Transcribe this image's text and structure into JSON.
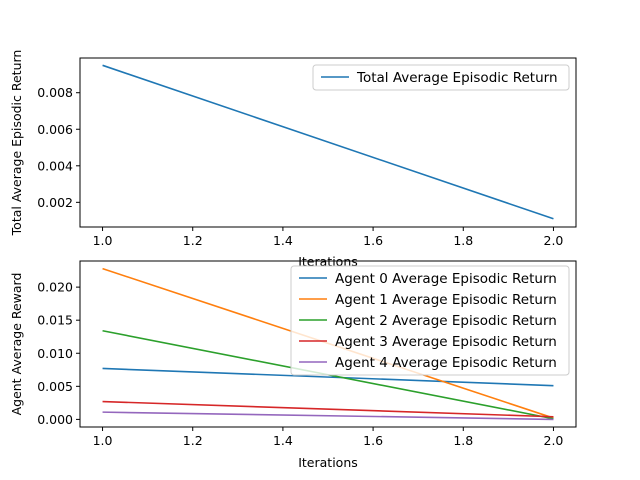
{
  "chart_data": [
    {
      "type": "line",
      "xlabel": "Iterations",
      "ylabel": "Total Average Episodic Return",
      "xlim": [
        0.95,
        2.05
      ],
      "ylim": [
        0.00065,
        0.0099
      ],
      "xticks": [
        1.0,
        1.2,
        1.4,
        1.6,
        1.8,
        2.0
      ],
      "xtick_labels": [
        "1.0",
        "1.2",
        "1.4",
        "1.6",
        "1.8",
        "2.0"
      ],
      "yticks": [
        0.002,
        0.004,
        0.006,
        0.008
      ],
      "ytick_labels": [
        "0.002",
        "0.004",
        "0.006",
        "0.008"
      ],
      "grid": false,
      "legend_position": "upper right",
      "x": [
        1.0,
        2.0
      ],
      "series": [
        {
          "name": "Total Average Episodic Return",
          "color": "#1f77b4",
          "values": [
            0.0095,
            0.0011
          ]
        }
      ]
    },
    {
      "type": "line",
      "xlabel": "Iterations",
      "ylabel": "Agent Average Reward",
      "xlim": [
        0.95,
        2.05
      ],
      "ylim": [
        -0.00115,
        0.02395
      ],
      "xticks": [
        1.0,
        1.2,
        1.4,
        1.6,
        1.8,
        2.0
      ],
      "xtick_labels": [
        "1.0",
        "1.2",
        "1.4",
        "1.6",
        "1.8",
        "2.0"
      ],
      "yticks": [
        0.0,
        0.005,
        0.01,
        0.015,
        0.02
      ],
      "ytick_labels": [
        "0.000",
        "0.005",
        "0.010",
        "0.015",
        "0.020"
      ],
      "grid": false,
      "legend_position": "upper right",
      "x": [
        1.0,
        2.0
      ],
      "series": [
        {
          "name": "Agent 0 Average Episodic Return",
          "color": "#1f77b4",
          "values": [
            0.0077,
            0.0051
          ]
        },
        {
          "name": "Agent 1 Average Episodic Return",
          "color": "#ff7f0e",
          "values": [
            0.0228,
            0.0002
          ]
        },
        {
          "name": "Agent 2 Average Episodic Return",
          "color": "#2ca02c",
          "values": [
            0.0134,
            0.0001
          ]
        },
        {
          "name": "Agent 3 Average Episodic Return",
          "color": "#d62728",
          "values": [
            0.0027,
            0.0004
          ]
        },
        {
          "name": "Agent 4 Average Episodic Return",
          "color": "#9467bd",
          "values": [
            0.0011,
            0.0
          ]
        }
      ]
    }
  ]
}
